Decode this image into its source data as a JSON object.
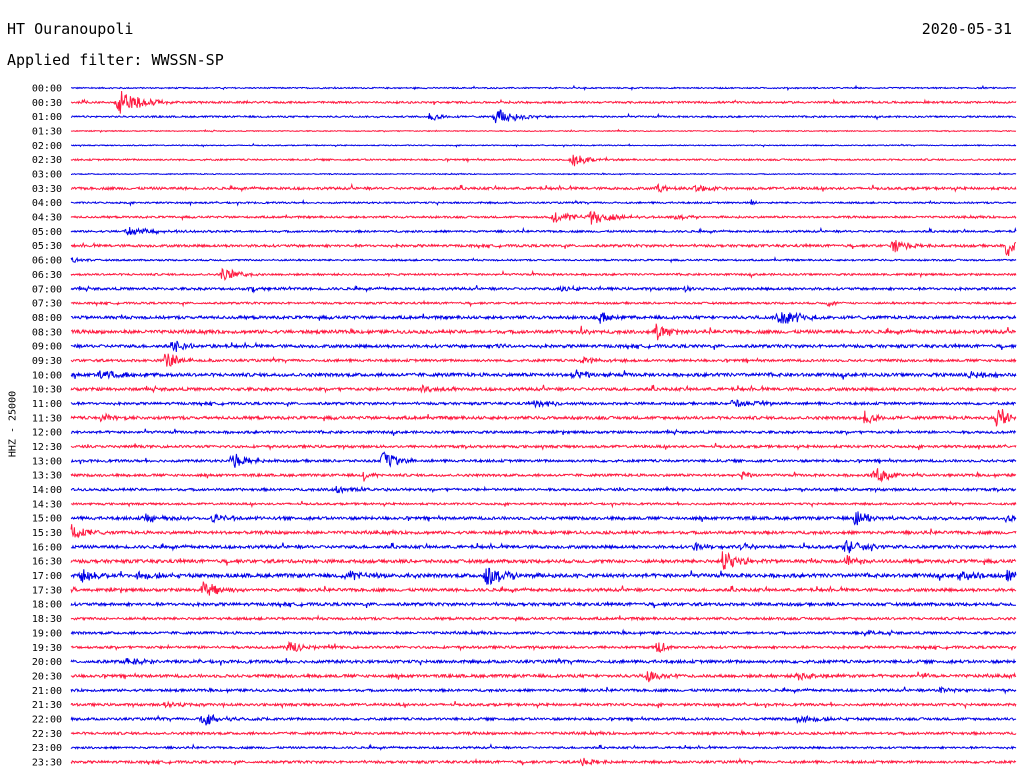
{
  "header": {
    "station": "HT Ouranoupoli",
    "date": "2020-05-31",
    "filter": "Applied filter: WWSSN-SP"
  },
  "chart_data": {
    "type": "line",
    "ylabel": "HHZ - 25000",
    "xlabel": "",
    "row_labels": [
      "00:00",
      "00:30",
      "01:00",
      "01:30",
      "02:00",
      "02:30",
      "03:00",
      "03:30",
      "04:00",
      "04:30",
      "05:00",
      "05:30",
      "06:00",
      "06:30",
      "07:00",
      "07:30",
      "08:00",
      "08:30",
      "09:00",
      "09:30",
      "10:00",
      "10:30",
      "11:00",
      "11:30",
      "12:00",
      "12:30",
      "13:00",
      "13:30",
      "14:00",
      "14:30",
      "15:00",
      "15:30",
      "16:00",
      "16:30",
      "17:00",
      "17:30",
      "18:00",
      "18:30",
      "19:00",
      "19:30",
      "20:00",
      "20:30",
      "21:00",
      "21:30",
      "22:00",
      "22:30",
      "23:00",
      "23:30"
    ],
    "colors": [
      "#0000e6",
      "#ff1a40"
    ],
    "x_range": [
      0,
      1
    ],
    "noise": [
      0.8,
      1.2,
      1.0,
      0.6,
      0.6,
      1.0,
      0.6,
      1.5,
      1.0,
      1.2,
      1.2,
      1.5,
      1.0,
      1.2,
      1.5,
      1.2,
      1.8,
      2.0,
      1.8,
      1.5,
      2.0,
      1.8,
      1.5,
      1.8,
      1.5,
      1.5,
      1.5,
      1.5,
      1.5,
      1.2,
      1.8,
      1.8,
      1.8,
      2.0,
      2.2,
      1.8,
      1.8,
      1.5,
      1.5,
      1.5,
      1.8,
      1.8,
      1.5,
      1.5,
      1.5,
      1.5,
      1.2,
      1.5
    ],
    "events": [
      [],
      [
        [
          0.05,
          14,
          0.03
        ]
      ],
      [
        [
          0.38,
          5,
          0.02
        ],
        [
          0.45,
          9,
          0.03
        ]
      ],
      [],
      [],
      [
        [
          0.53,
          8,
          0.02
        ]
      ],
      [],
      [
        [
          0.62,
          4,
          0.02
        ],
        [
          0.66,
          4,
          0.02
        ]
      ],
      [
        [
          0.72,
          3,
          0.01
        ]
      ],
      [
        [
          0.51,
          6,
          0.03
        ],
        [
          0.55,
          8,
          0.03
        ],
        [
          0.64,
          3,
          0.03
        ]
      ],
      [
        [
          0.06,
          4,
          0.04
        ]
      ],
      [
        [
          0.87,
          7,
          0.02
        ],
        [
          0.99,
          12,
          0.02
        ]
      ],
      [
        [
          0.0,
          4,
          0.01
        ]
      ],
      [
        [
          0.16,
          8,
          0.02
        ]
      ],
      [
        [
          0.19,
          3,
          0.02
        ],
        [
          0.52,
          3,
          0.02
        ],
        [
          0.65,
          4,
          0.01
        ]
      ],
      [
        [
          0.8,
          4,
          0.01
        ]
      ],
      [
        [
          0.56,
          5,
          0.02
        ],
        [
          0.75,
          7,
          0.04
        ]
      ],
      [
        [
          0.54,
          5,
          0.01
        ],
        [
          0.62,
          10,
          0.02
        ]
      ],
      [
        [
          0.11,
          7,
          0.02
        ],
        [
          0.45,
          4,
          0.01
        ]
      ],
      [
        [
          0.1,
          10,
          0.02
        ],
        [
          0.54,
          4,
          0.03
        ]
      ],
      [
        [
          0.03,
          4,
          0.03
        ],
        [
          0.53,
          6,
          0.02
        ],
        [
          0.95,
          5,
          0.02
        ]
      ],
      [
        [
          0.37,
          4,
          0.02
        ]
      ],
      [
        [
          0.49,
          4,
          0.03
        ],
        [
          0.7,
          4,
          0.03
        ]
      ],
      [
        [
          0.03,
          4,
          0.03
        ],
        [
          0.84,
          8,
          0.02
        ],
        [
          0.98,
          12,
          0.02
        ]
      ],
      [],
      [],
      [
        [
          0.17,
          9,
          0.02
        ],
        [
          0.33,
          10,
          0.02
        ]
      ],
      [
        [
          0.31,
          6,
          0.01
        ],
        [
          0.71,
          5,
          0.01
        ],
        [
          0.85,
          7,
          0.03
        ]
      ],
      [
        [
          0.28,
          4,
          0.04
        ]
      ],
      [],
      [
        [
          0.08,
          4,
          0.04
        ],
        [
          0.15,
          4,
          0.03
        ],
        [
          0.83,
          9,
          0.02
        ],
        [
          0.99,
          5,
          0.02
        ]
      ],
      [
        [
          0.0,
          10,
          0.02
        ]
      ],
      [
        [
          0.66,
          5,
          0.02
        ],
        [
          0.71,
          4,
          0.02
        ],
        [
          0.82,
          6,
          0.03
        ]
      ],
      [
        [
          0.69,
          14,
          0.02
        ],
        [
          0.82,
          6,
          0.02
        ]
      ],
      [
        [
          0.01,
          8,
          0.02
        ],
        [
          0.07,
          4,
          0.04
        ],
        [
          0.29,
          5,
          0.03
        ],
        [
          0.44,
          12,
          0.03
        ],
        [
          0.94,
          6,
          0.02
        ],
        [
          0.99,
          8,
          0.01
        ]
      ],
      [
        [
          0.0,
          4,
          0.01
        ],
        [
          0.14,
          10,
          0.02
        ]
      ],
      [],
      [],
      [
        [
          0.84,
          4,
          0.01
        ]
      ],
      [
        [
          0.23,
          6,
          0.02
        ],
        [
          0.62,
          10,
          0.01
        ]
      ],
      [
        [
          0.06,
          4,
          0.03
        ]
      ],
      [
        [
          0.61,
          7,
          0.02
        ],
        [
          0.77,
          4,
          0.03
        ],
        [
          0.9,
          3,
          0.01
        ]
      ],
      [
        [
          0.92,
          3,
          0.02
        ]
      ],
      [
        [
          0.1,
          3,
          0.04
        ]
      ],
      [
        [
          0.14,
          6,
          0.03
        ],
        [
          0.77,
          4,
          0.04
        ]
      ],
      [],
      [],
      [
        [
          0.54,
          4,
          0.02
        ]
      ]
    ]
  }
}
